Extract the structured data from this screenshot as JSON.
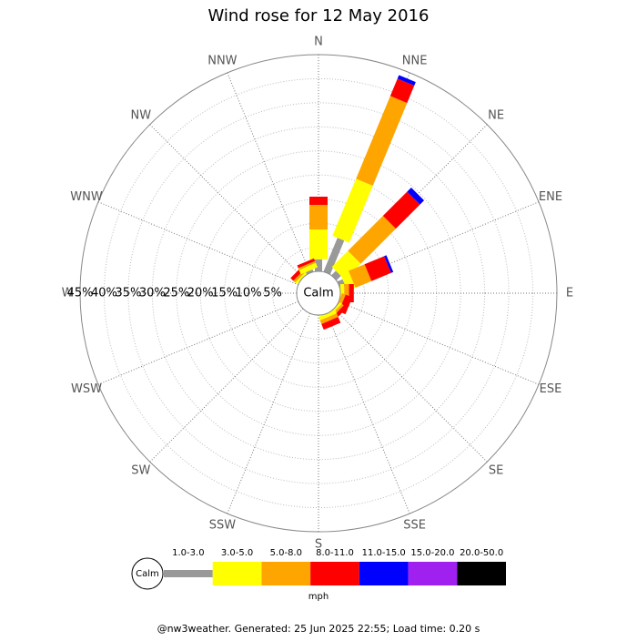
{
  "chart_data": {
    "type": "windrose",
    "title": "Wind rose for 12 May 2016",
    "calm_label": "Calm",
    "directions": [
      "N",
      "NNE",
      "NE",
      "ENE",
      "E",
      "ESE",
      "SE",
      "SSE",
      "S",
      "SSW",
      "SW",
      "WSW",
      "W",
      "WNW",
      "NW",
      "NNW"
    ],
    "rlim": [
      0,
      45
    ],
    "rticks": [
      {
        "value": 5,
        "label": "5%"
      },
      {
        "value": 10,
        "label": "10%"
      },
      {
        "value": 15,
        "label": "15%"
      },
      {
        "value": 20,
        "label": "20%"
      },
      {
        "value": 25,
        "label": "25%"
      },
      {
        "value": 30,
        "label": "30%"
      },
      {
        "value": 35,
        "label": "35%"
      },
      {
        "value": 40,
        "label": "40%"
      },
      {
        "value": 45,
        "label": "45%"
      }
    ],
    "series": [
      {
        "name": "1.0-3.0",
        "color": "#999999",
        "values": [
          2.5,
          7.6,
          1.3,
          1.2,
          0,
          0,
          0,
          0,
          0,
          0,
          0,
          0,
          0,
          0,
          0,
          0.5
        ]
      },
      {
        "name": "3.0-5.0",
        "color": "#ffff00",
        "values": [
          6.2,
          12.8,
          4.7,
          1.8,
          0.8,
          0,
          0.5,
          0.8,
          0,
          0,
          0,
          0,
          0,
          0,
          0.5,
          1.0
        ]
      },
      {
        "name": "5.0-8.0",
        "color": "#ffa500",
        "values": [
          5.1,
          18.6,
          10.3,
          3.6,
          1.0,
          0.8,
          0.5,
          0.8,
          0,
          0,
          0,
          0,
          0,
          0,
          0.5,
          0.4
        ]
      },
      {
        "name": "8.0-11.0",
        "color": "#ff0000",
        "values": [
          1.7,
          3.9,
          7.1,
          4.4,
          1.0,
          1.5,
          0.8,
          1.3,
          0,
          0,
          0,
          0,
          0,
          0,
          0.8,
          0.6
        ]
      },
      {
        "name": "11.0-15.0",
        "color": "#0000ff",
        "values": [
          0,
          0.8,
          1.2,
          0.5,
          0,
          0,
          0,
          0,
          0,
          0,
          0,
          0,
          0,
          0,
          0,
          0
        ]
      },
      {
        "name": "15.0-20.0",
        "color": "#a020f0",
        "values": [
          0,
          0,
          0,
          0,
          0,
          0,
          0,
          0,
          0,
          0,
          0,
          0,
          0,
          0,
          0,
          0
        ]
      },
      {
        "name": "20.0-50.0",
        "color": "#000000",
        "values": [
          0,
          0,
          0,
          0,
          0,
          0,
          0,
          0,
          0,
          0,
          0,
          0,
          0,
          0,
          0,
          0
        ]
      }
    ],
    "unit_label": "mph",
    "footer": "@nw3weather. Generated: 25 Jun 2025 22:55; Load time: 0.20 s"
  }
}
